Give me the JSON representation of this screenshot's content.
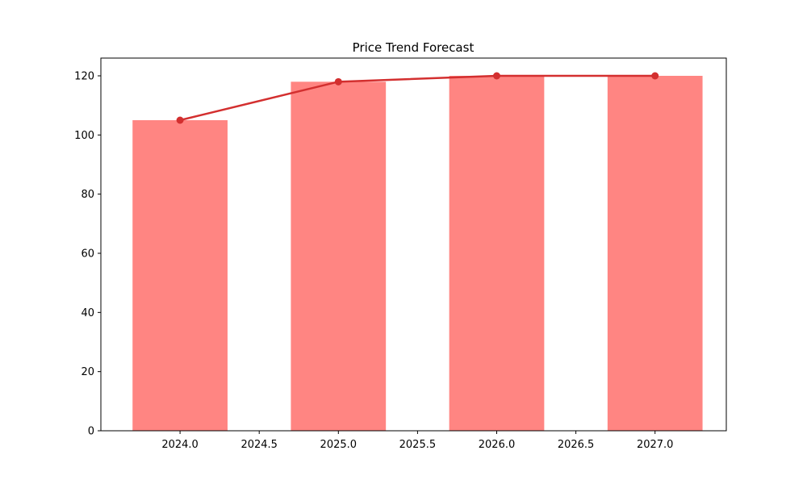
{
  "chart_data": {
    "type": "bar",
    "title": "Price Trend Forecast",
    "xlabel": "",
    "ylabel": "",
    "x": [
      2024,
      2025,
      2026,
      2027
    ],
    "values": [
      105,
      118,
      120,
      120
    ],
    "overlay_line": {
      "x": [
        2024,
        2025,
        2026,
        2027
      ],
      "values": [
        105,
        118,
        120,
        120
      ]
    },
    "xlim": [
      2023.5,
      2027.45
    ],
    "ylim": [
      0,
      126
    ],
    "xticks": [
      "2024.0",
      "2024.5",
      "2025.0",
      "2025.5",
      "2026.0",
      "2026.5",
      "2027.0"
    ],
    "xtick_values": [
      2024.0,
      2024.5,
      2025.0,
      2025.5,
      2026.0,
      2026.5,
      2027.0
    ],
    "yticks": [
      "0",
      "20",
      "40",
      "60",
      "80",
      "100",
      "120"
    ],
    "ytick_values": [
      0,
      20,
      40,
      60,
      80,
      100,
      120
    ],
    "bar_width": 0.6,
    "grid": false,
    "legend": "none",
    "colors": {
      "bar": "#ff8582",
      "line": "#d32f2f"
    }
  }
}
